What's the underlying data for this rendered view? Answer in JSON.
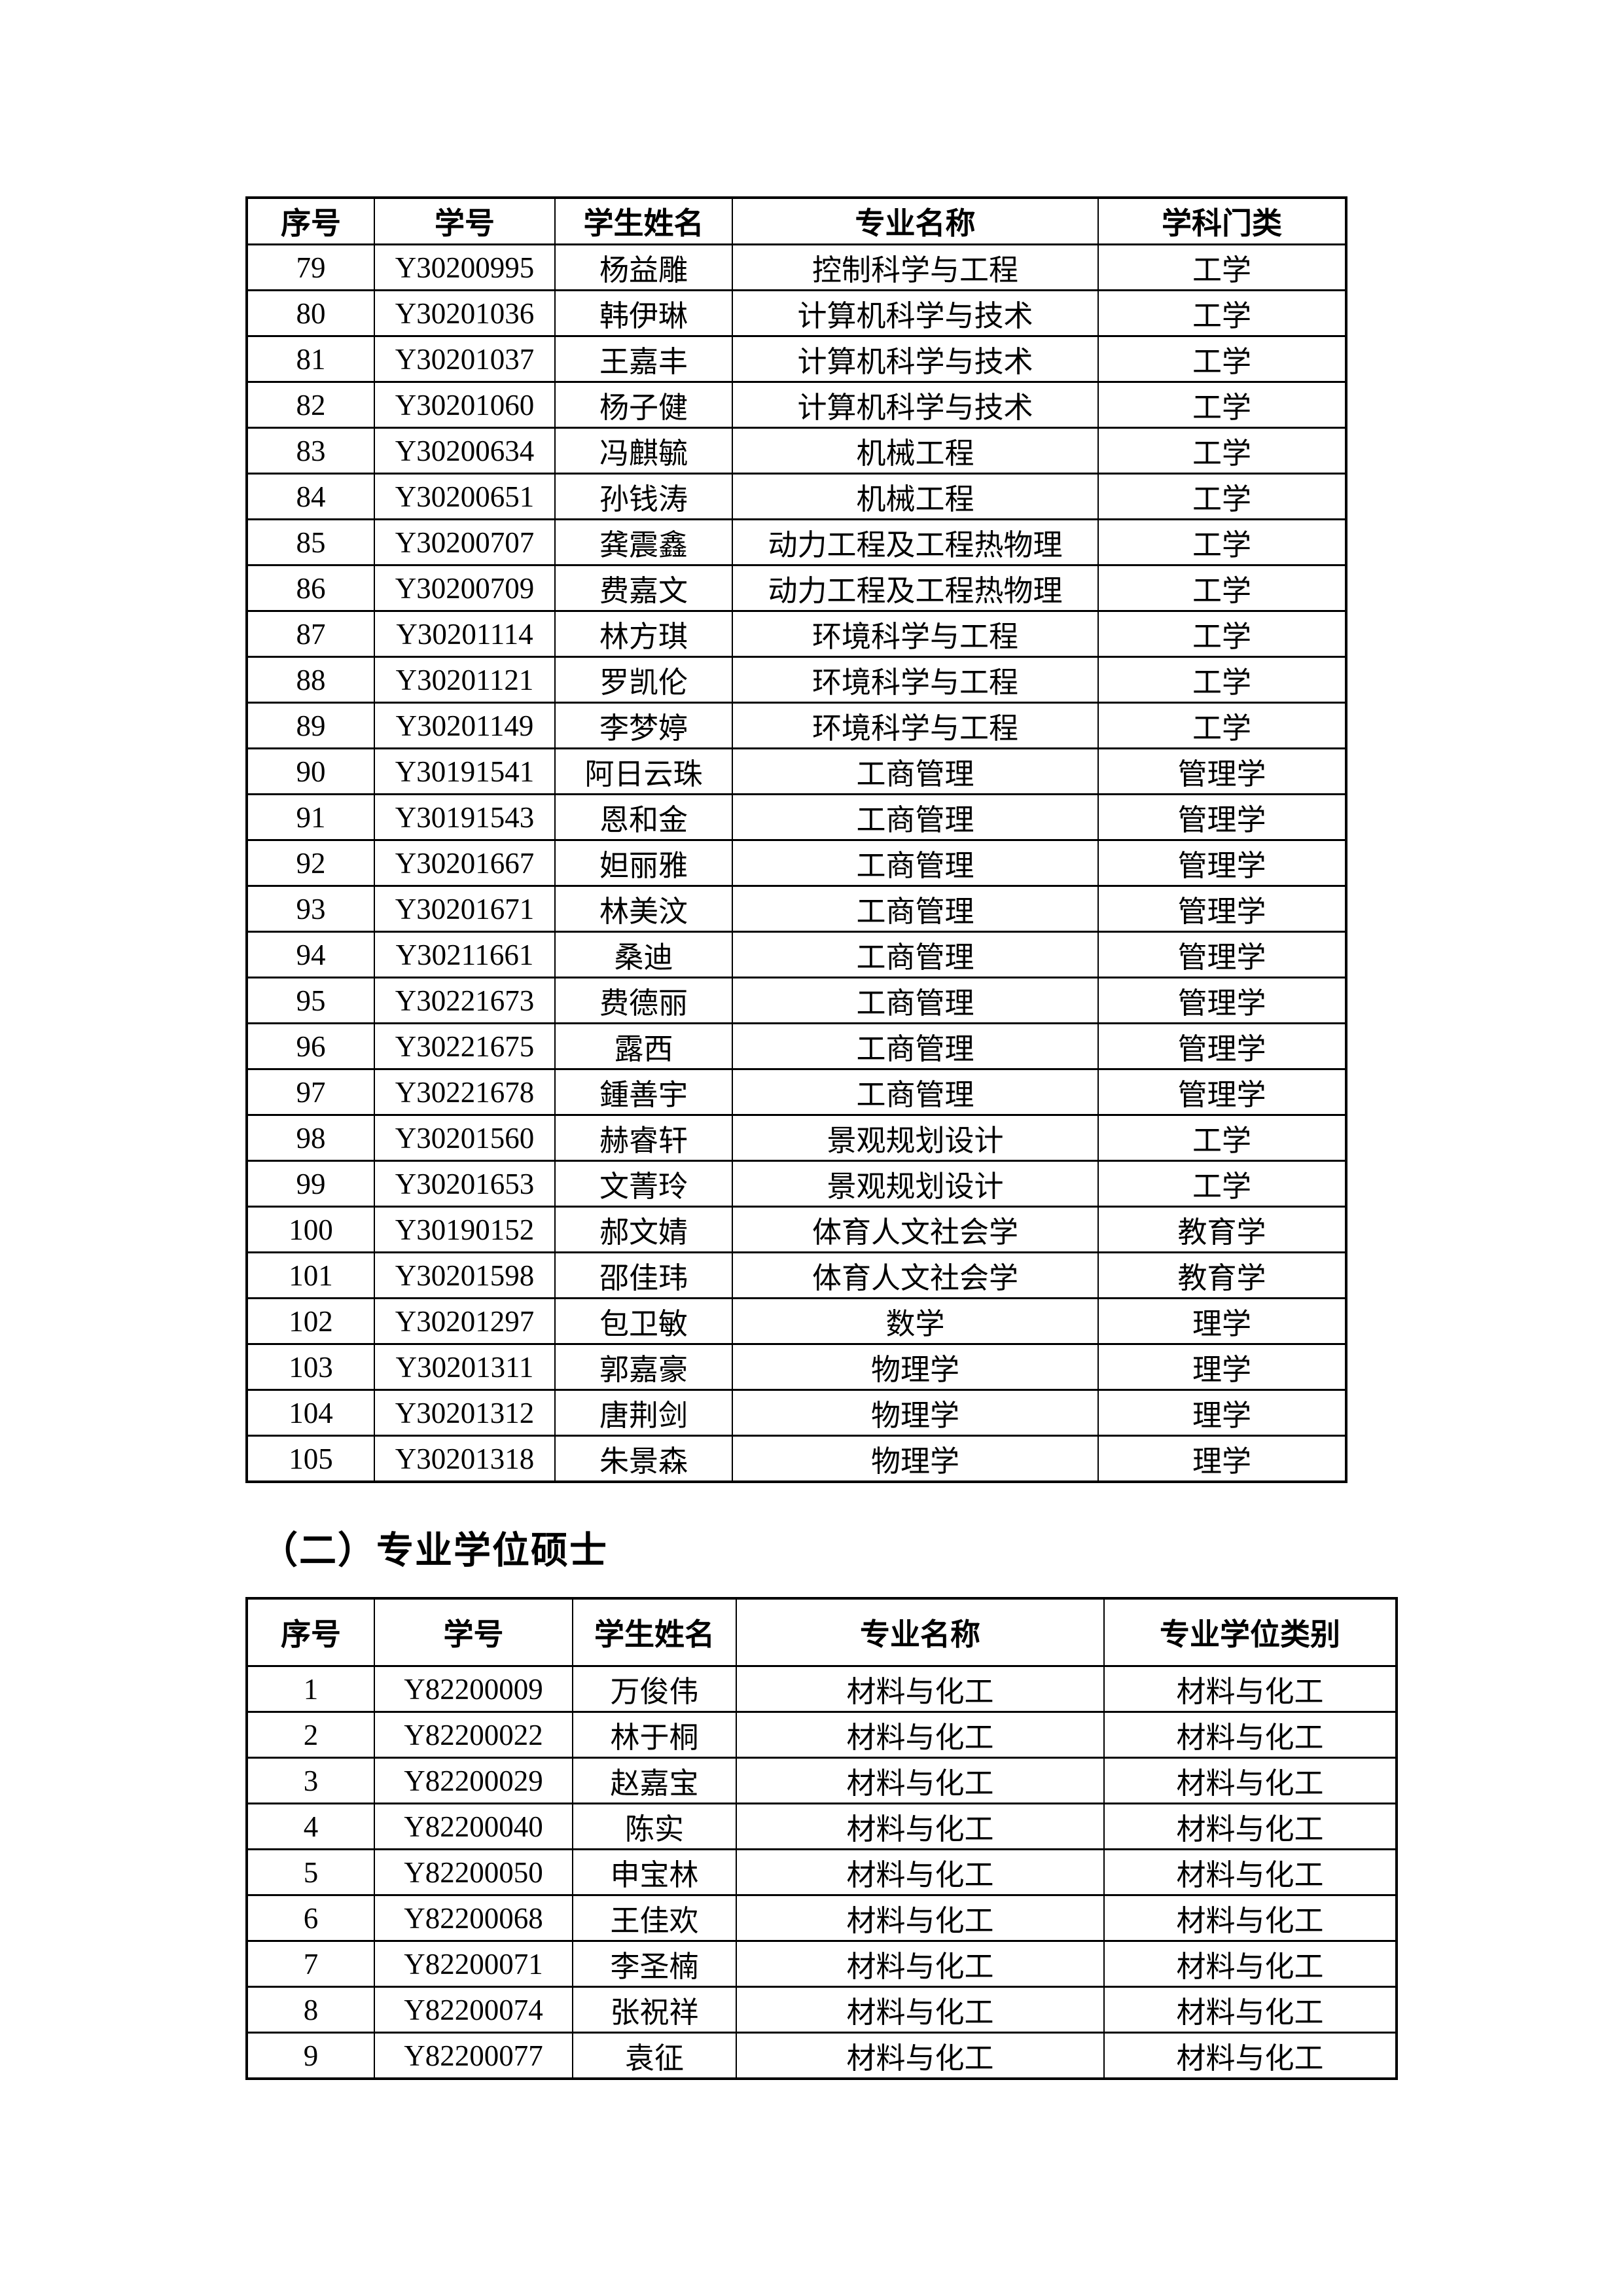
{
  "section_heading": "（二）专业学位硕士",
  "table1": {
    "headers": [
      "序号",
      "学号",
      "学生姓名",
      "专业名称",
      "学科门类"
    ],
    "rows": [
      [
        "79",
        "Y30200995",
        "杨益雕",
        "控制科学与工程",
        "工学"
      ],
      [
        "80",
        "Y30201036",
        "韩伊琳",
        "计算机科学与技术",
        "工学"
      ],
      [
        "81",
        "Y30201037",
        "王嘉丰",
        "计算机科学与技术",
        "工学"
      ],
      [
        "82",
        "Y30201060",
        "杨子健",
        "计算机科学与技术",
        "工学"
      ],
      [
        "83",
        "Y30200634",
        "冯麒毓",
        "机械工程",
        "工学"
      ],
      [
        "84",
        "Y30200651",
        "孙钱涛",
        "机械工程",
        "工学"
      ],
      [
        "85",
        "Y30200707",
        "龚震鑫",
        "动力工程及工程热物理",
        "工学"
      ],
      [
        "86",
        "Y30200709",
        "费嘉文",
        "动力工程及工程热物理",
        "工学"
      ],
      [
        "87",
        "Y30201114",
        "林方琪",
        "环境科学与工程",
        "工学"
      ],
      [
        "88",
        "Y30201121",
        "罗凯伦",
        "环境科学与工程",
        "工学"
      ],
      [
        "89",
        "Y30201149",
        "李梦婷",
        "环境科学与工程",
        "工学"
      ],
      [
        "90",
        "Y30191541",
        "阿日云珠",
        "工商管理",
        "管理学"
      ],
      [
        "91",
        "Y30191543",
        "恩和金",
        "工商管理",
        "管理学"
      ],
      [
        "92",
        "Y30201667",
        "妲丽雅",
        "工商管理",
        "管理学"
      ],
      [
        "93",
        "Y30201671",
        "林美汶",
        "工商管理",
        "管理学"
      ],
      [
        "94",
        "Y30211661",
        "桑迪",
        "工商管理",
        "管理学"
      ],
      [
        "95",
        "Y30221673",
        "费德丽",
        "工商管理",
        "管理学"
      ],
      [
        "96",
        "Y30221675",
        "露西",
        "工商管理",
        "管理学"
      ],
      [
        "97",
        "Y30221678",
        "鍾善宇",
        "工商管理",
        "管理学"
      ],
      [
        "98",
        "Y30201560",
        "赫睿轩",
        "景观规划设计",
        "工学"
      ],
      [
        "99",
        "Y30201653",
        "文菁玲",
        "景观规划设计",
        "工学"
      ],
      [
        "100",
        "Y30190152",
        "郝文婧",
        "体育人文社会学",
        "教育学"
      ],
      [
        "101",
        "Y30201598",
        "邵佳玮",
        "体育人文社会学",
        "教育学"
      ],
      [
        "102",
        "Y30201297",
        "包卫敏",
        "数学",
        "理学"
      ],
      [
        "103",
        "Y30201311",
        "郭嘉豪",
        "物理学",
        "理学"
      ],
      [
        "104",
        "Y30201312",
        "唐荆剑",
        "物理学",
        "理学"
      ],
      [
        "105",
        "Y30201318",
        "朱景森",
        "物理学",
        "理学"
      ]
    ]
  },
  "table2": {
    "headers": [
      "序号",
      "学号",
      "学生姓名",
      "专业名称",
      "专业学位类别"
    ],
    "rows": [
      [
        "1",
        "Y82200009",
        "万俊伟",
        "材料与化工",
        "材料与化工"
      ],
      [
        "2",
        "Y82200022",
        "林于桐",
        "材料与化工",
        "材料与化工"
      ],
      [
        "3",
        "Y82200029",
        "赵嘉宝",
        "材料与化工",
        "材料与化工"
      ],
      [
        "4",
        "Y82200040",
        "陈实",
        "材料与化工",
        "材料与化工"
      ],
      [
        "5",
        "Y82200050",
        "申宝林",
        "材料与化工",
        "材料与化工"
      ],
      [
        "6",
        "Y82200068",
        "王佳欢",
        "材料与化工",
        "材料与化工"
      ],
      [
        "7",
        "Y82200071",
        "李圣楠",
        "材料与化工",
        "材料与化工"
      ],
      [
        "8",
        "Y82200074",
        "张祝祥",
        "材料与化工",
        "材料与化工"
      ],
      [
        "9",
        "Y82200077",
        "袁征",
        "材料与化工",
        "材料与化工"
      ]
    ]
  }
}
